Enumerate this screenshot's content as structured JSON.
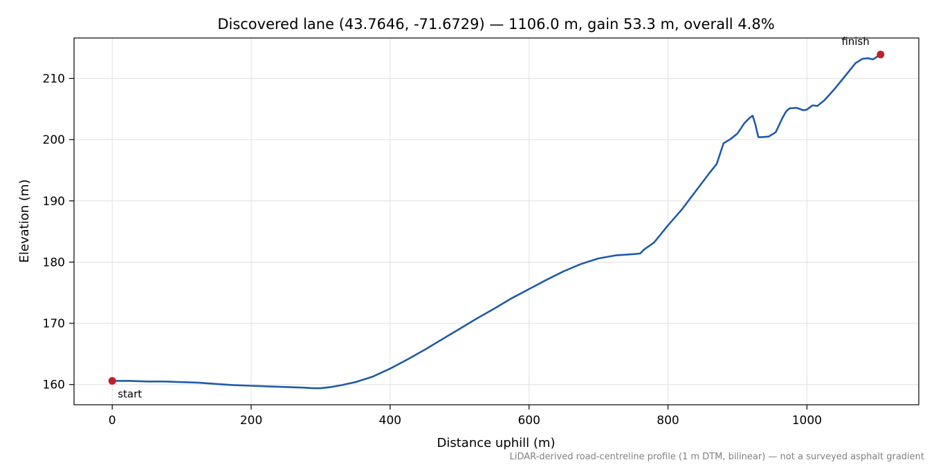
{
  "chart_data": {
    "type": "line",
    "title": "Discovered lane (43.7646, -71.6729) — 1106.0 m, gain 53.3 m, overall 4.8%",
    "xlabel": "Distance uphill (m)",
    "ylabel": "Elevation (m)",
    "xlim": [
      -55,
      1161
    ],
    "ylim": [
      156.7,
      216.6
    ],
    "xticks": [
      0,
      200,
      400,
      600,
      800,
      1000
    ],
    "yticks": [
      160,
      170,
      180,
      190,
      200,
      210
    ],
    "grid": true,
    "footnote": "LiDAR-derived road-centreline profile (1 m DTM, bilinear) — not a surveyed asphalt gradient",
    "colors": {
      "line": "#1f5aa8",
      "marker": "#c0202a",
      "grid": "#e0e0e0",
      "axis": "#000000",
      "footnote": "#808080"
    },
    "series": [
      {
        "x": [
          0,
          25,
          50,
          75,
          100,
          125,
          150,
          175,
          200,
          225,
          250,
          275,
          290,
          300,
          315,
          330,
          350,
          375,
          400,
          425,
          450,
          475,
          500,
          525,
          550,
          575,
          600,
          625,
          650,
          675,
          700,
          725,
          750,
          760,
          765,
          780,
          790,
          800,
          820,
          840,
          860,
          870,
          880,
          890,
          900,
          910,
          918,
          922,
          926,
          930,
          935,
          945,
          955,
          965,
          970,
          975,
          985,
          995,
          1000,
          1008,
          1015,
          1025,
          1040,
          1055,
          1070,
          1080,
          1088,
          1095,
          1106
        ],
        "y": [
          160.6,
          160.6,
          160.5,
          160.5,
          160.4,
          160.3,
          160.1,
          159.9,
          159.8,
          159.7,
          159.6,
          159.5,
          159.4,
          159.4,
          159.6,
          159.9,
          160.4,
          161.3,
          162.6,
          164.1,
          165.7,
          167.4,
          169.1,
          170.8,
          172.4,
          174.1,
          175.6,
          177.1,
          178.5,
          179.7,
          180.6,
          181.1,
          181.3,
          181.4,
          182.0,
          183.2,
          184.6,
          186.0,
          188.6,
          191.6,
          194.6,
          196.0,
          199.4,
          200.1,
          201.0,
          202.7,
          203.6,
          203.9,
          202.4,
          200.4,
          200.4,
          200.5,
          201.2,
          203.6,
          204.6,
          205.1,
          205.2,
          204.8,
          204.9,
          205.6,
          205.5,
          206.4,
          208.3,
          210.4,
          212.5,
          213.2,
          213.3,
          213.1,
          213.9
        ]
      }
    ],
    "annotations": [
      {
        "label": "start",
        "x": 0,
        "y": 160.6
      },
      {
        "label": "finish",
        "x": 1106,
        "y": 213.9
      }
    ]
  }
}
